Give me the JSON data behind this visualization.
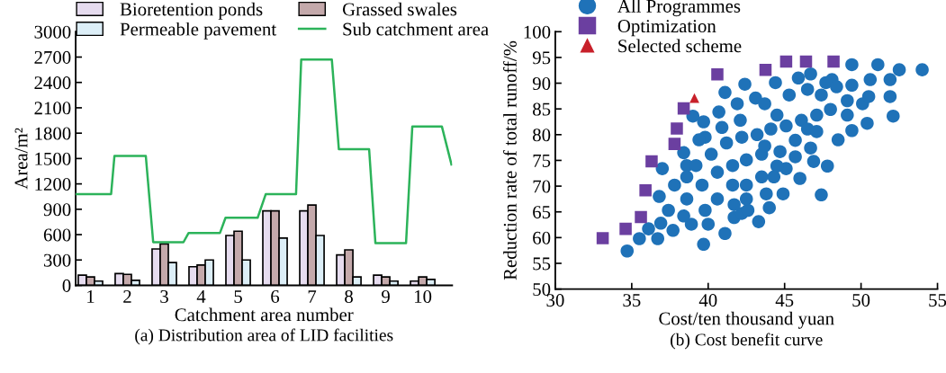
{
  "chart_data": [
    {
      "type": "bar",
      "title": "(a) Distribution area of LID facilities",
      "xlabel": "Catchment area number",
      "ylabel": "Area/m²",
      "x": [
        1,
        2,
        3,
        4,
        5,
        6,
        7,
        8,
        9,
        10
      ],
      "series": [
        {
          "name": "Bioretention ponds",
          "color": "#e6dcef",
          "values": [
            120,
            140,
            430,
            220,
            590,
            880,
            880,
            360,
            120,
            50
          ]
        },
        {
          "name": "Grassed swales",
          "color": "#c4a9ab",
          "values": [
            100,
            130,
            490,
            240,
            640,
            880,
            950,
            420,
            100,
            100
          ]
        },
        {
          "name": "Permeable pavement",
          "color": "#dceef7",
          "values": [
            50,
            60,
            270,
            300,
            300,
            560,
            590,
            100,
            50,
            70
          ]
        },
        {
          "name": "Sub catchment area",
          "type": "line",
          "color": "#2cb35a",
          "x": [
            0.6,
            1.56,
            1.65,
            2.5,
            2.7,
            3.52,
            3.66,
            4.51,
            4.66,
            5.53,
            5.75,
            6.57,
            6.71,
            7.54,
            7.73,
            8.55,
            8.72,
            9.55,
            9.72,
            10.52,
            10.78
          ],
          "values": [
            1080,
            1080,
            1530,
            1530,
            510,
            510,
            620,
            620,
            800,
            800,
            1080,
            1080,
            2670,
            2670,
            1610,
            1610,
            500,
            500,
            1880,
            1880,
            1430
          ]
        }
      ],
      "xlim": [
        0.6,
        10.8
      ],
      "xticks": [
        1,
        2,
        3,
        4,
        5,
        6,
        7,
        8,
        9,
        10
      ],
      "ylim": [
        0,
        3000
      ],
      "yticks": [
        0,
        300,
        600,
        900,
        1200,
        1500,
        1800,
        2100,
        2400,
        2700,
        3000
      ],
      "legend": "top",
      "grid": false
    },
    {
      "type": "scatter",
      "title": "(b) Cost benefit curve",
      "xlabel": "Cost/ten thousand yuan",
      "ylabel": "Reduction rate of total runoff/%",
      "series": [
        {
          "name": "All Programmes",
          "color": "#1f72b8",
          "marker": "circle",
          "x": [
            34.7,
            35.5,
            36.7,
            36.1,
            37.7,
            36.9,
            39.7,
            41.1,
            43.3,
            44.0,
            43.8,
            44.9,
            46.0,
            45.1,
            47.4,
            47.8,
            46.9,
            46.7,
            48.5,
            49.4,
            50.4,
            52.1,
            51.9,
            50.1,
            50.5,
            49.1,
            49.1,
            49.4,
            50.6,
            51.9,
            52.5,
            54.0,
            51.1,
            49.4,
            48.1,
            47.7,
            46.7,
            45.9,
            44.4,
            42.4,
            41.1,
            43.1,
            41.9,
            40.7,
            39.0,
            39.7,
            40.9,
            39.8,
            39.4,
            38.4,
            37.0,
            38.6,
            37.8,
            36.8,
            37.4,
            38.9,
            40.0,
            41.7,
            42.2,
            42.6,
            38.6,
            39.6,
            40.6,
            41.6,
            42.5,
            43.5,
            40.6,
            41.6,
            42.5,
            43.5,
            40.2,
            41.2,
            42.2,
            43.2,
            44.1,
            45.1,
            46.1,
            47.1,
            48.0,
            44.5,
            43.7,
            45.3,
            46.5,
            47.4,
            48.4,
            42.1,
            43.7,
            44.7,
            45.7,
            45.7,
            46.5,
            47.1,
            44.5,
            44.3,
            42.5,
            41.7,
            39.8,
            38.4,
            38.6,
            39.2
          ],
          "values": [
            57.4,
            59.8,
            59.8,
            61.7,
            61.4,
            62.8,
            58.7,
            60.8,
            63.1,
            65.8,
            68.5,
            68.5,
            71.5,
            73.4,
            68.3,
            73.9,
            74.8,
            77.4,
            79.0,
            80.8,
            82.2,
            83.6,
            87.4,
            86.0,
            87.4,
            86.6,
            83.8,
            89.6,
            90.7,
            90.7,
            92.6,
            92.6,
            93.6,
            93.6,
            90.7,
            90.1,
            91.8,
            91.0,
            90.1,
            89.8,
            88.2,
            87.1,
            86.0,
            84.4,
            83.6,
            82.5,
            81.4,
            79.5,
            79.0,
            76.5,
            73.4,
            74.0,
            70.2,
            68.0,
            65.3,
            62.6,
            62.6,
            63.9,
            64.7,
            65.3,
            67.5,
            70.2,
            67.5,
            70.2,
            70.2,
            71.8,
            72.7,
            74.0,
            75.1,
            76.2,
            76.2,
            78.4,
            79.5,
            80.0,
            81.1,
            81.7,
            82.8,
            83.8,
            84.9,
            83.8,
            86.0,
            87.7,
            88.8,
            87.7,
            89.3,
            82.8,
            77.8,
            76.7,
            75.7,
            78.9,
            81.1,
            80.6,
            73.9,
            71.8,
            67.5,
            66.4,
            65.3,
            64.2,
            71.8,
            74.0
          ]
        },
        {
          "name": "Optimization",
          "color": "#6b3fa0",
          "marker": "square",
          "x": [
            33.1,
            34.6,
            35.6,
            35.9,
            36.3,
            37.8,
            37.95,
            38.4,
            40.6,
            43.75,
            45.1,
            46.4,
            48.2
          ],
          "values": [
            59.9,
            61.7,
            64.0,
            69.2,
            74.8,
            78.2,
            81.2,
            85.1,
            91.7,
            92.6,
            94.2,
            94.2,
            94.2
          ]
        },
        {
          "name": "Selected scheme",
          "color": "#c8202a",
          "marker": "triangle",
          "x": [
            39.1
          ],
          "values": [
            87.1
          ]
        }
      ],
      "xlim": [
        30,
        55
      ],
      "xticks": [
        30,
        35,
        40,
        45,
        50,
        55
      ],
      "ylim": [
        50,
        100
      ],
      "yticks": [
        50,
        55,
        60,
        65,
        70,
        75,
        80,
        85,
        90,
        95,
        100
      ],
      "legend": "top left",
      "grid": false
    }
  ]
}
